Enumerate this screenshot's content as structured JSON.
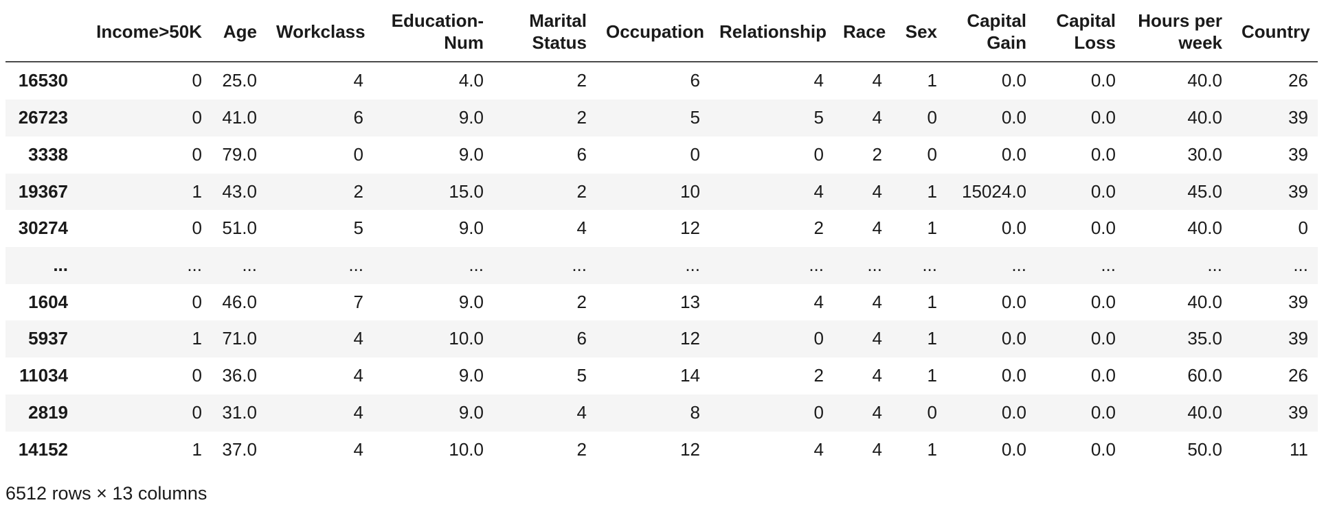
{
  "chart_data": {
    "type": "table",
    "columns": [
      "Income>50K",
      "Age",
      "Workclass",
      "Education-Num",
      "Marital Status",
      "Occupation",
      "Relationship",
      "Race",
      "Sex",
      "Capital Gain",
      "Capital Loss",
      "Hours per week",
      "Country"
    ],
    "rows": [
      {
        "index": "16530",
        "values": [
          "0",
          "25.0",
          "4",
          "4.0",
          "2",
          "6",
          "4",
          "4",
          "1",
          "0.0",
          "0.0",
          "40.0",
          "26"
        ]
      },
      {
        "index": "26723",
        "values": [
          "0",
          "41.0",
          "6",
          "9.0",
          "2",
          "5",
          "5",
          "4",
          "0",
          "0.0",
          "0.0",
          "40.0",
          "39"
        ]
      },
      {
        "index": "3338",
        "values": [
          "0",
          "79.0",
          "0",
          "9.0",
          "6",
          "0",
          "0",
          "2",
          "0",
          "0.0",
          "0.0",
          "30.0",
          "39"
        ]
      },
      {
        "index": "19367",
        "values": [
          "1",
          "43.0",
          "2",
          "15.0",
          "2",
          "10",
          "4",
          "4",
          "1",
          "15024.0",
          "0.0",
          "45.0",
          "39"
        ]
      },
      {
        "index": "30274",
        "values": [
          "0",
          "51.0",
          "5",
          "9.0",
          "4",
          "12",
          "2",
          "4",
          "1",
          "0.0",
          "0.0",
          "40.0",
          "0"
        ]
      },
      {
        "index": "...",
        "values": [
          "...",
          "...",
          "...",
          "...",
          "...",
          "...",
          "...",
          "...",
          "...",
          "...",
          "...",
          "...",
          "..."
        ]
      },
      {
        "index": "1604",
        "values": [
          "0",
          "46.0",
          "7",
          "9.0",
          "2",
          "13",
          "4",
          "4",
          "1",
          "0.0",
          "0.0",
          "40.0",
          "39"
        ]
      },
      {
        "index": "5937",
        "values": [
          "1",
          "71.0",
          "4",
          "10.0",
          "6",
          "12",
          "0",
          "4",
          "1",
          "0.0",
          "0.0",
          "35.0",
          "39"
        ]
      },
      {
        "index": "11034",
        "values": [
          "0",
          "36.0",
          "4",
          "9.0",
          "5",
          "14",
          "2",
          "4",
          "1",
          "0.0",
          "0.0",
          "60.0",
          "26"
        ]
      },
      {
        "index": "2819",
        "values": [
          "0",
          "31.0",
          "4",
          "9.0",
          "4",
          "8",
          "0",
          "4",
          "0",
          "0.0",
          "0.0",
          "40.0",
          "39"
        ]
      },
      {
        "index": "14152",
        "values": [
          "1",
          "37.0",
          "4",
          "10.0",
          "2",
          "12",
          "4",
          "4",
          "1",
          "0.0",
          "0.0",
          "50.0",
          "11"
        ]
      }
    ],
    "summary": "6512 rows × 13 columns",
    "layout": {
      "striped_rows": true,
      "stripe_color": "#f5f5f5",
      "header_rule_color": "#494949",
      "value_alignment": "right"
    }
  }
}
